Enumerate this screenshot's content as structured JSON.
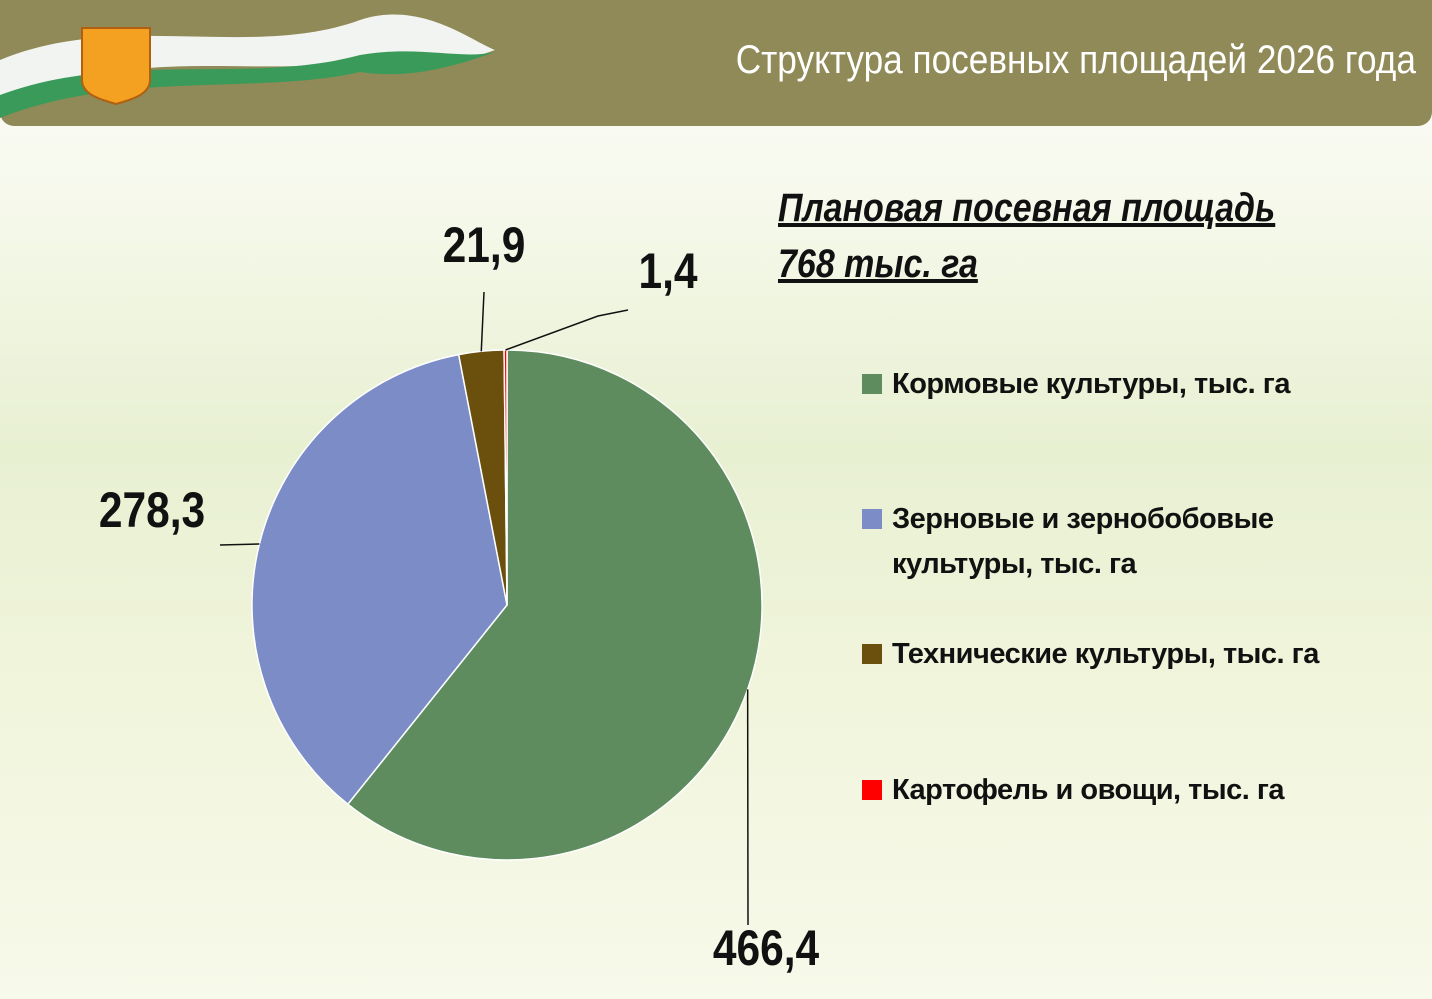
{
  "chart_data": {
    "type": "pie",
    "title": "Структура посевных площадей 2026 года",
    "subtitle": [
      "Плановая посевная площадь",
      "768 тыс. га"
    ],
    "categories": [
      "Кормовые культуры, тыс. га",
      "Зерновые и зернобобовые культуры, тыс. га",
      "Технические культуры, тыс. га",
      "Картофель и овощи, тыс. га"
    ],
    "values": [
      466.4,
      278.3,
      21.9,
      1.4
    ],
    "value_labels": [
      "466,4",
      "278,3",
      "21,9",
      "1,4"
    ],
    "colors": [
      "#5e8c5e",
      "#7b8cc7",
      "#6b4f0c",
      "#ff0000"
    ],
    "legend": "right"
  }
}
